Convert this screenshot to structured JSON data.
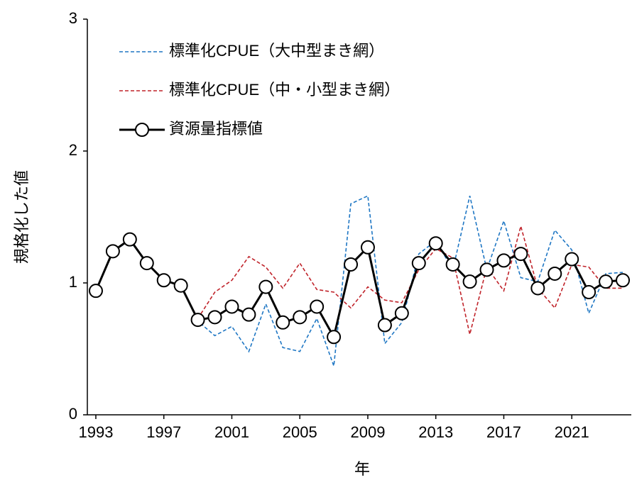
{
  "chart_data": {
    "type": "line",
    "x_label": "年",
    "y_label": "規格化した値",
    "x": [
      1993,
      1994,
      1995,
      1996,
      1997,
      1998,
      1999,
      2000,
      2001,
      2002,
      2003,
      2004,
      2005,
      2006,
      2007,
      2008,
      2009,
      2010,
      2011,
      2012,
      2013,
      2014,
      2015,
      2016,
      2017,
      2018,
      2019,
      2020,
      2021,
      2022,
      2023,
      2024
    ],
    "xlim": [
      1992.5,
      2024.5
    ],
    "xticks": [
      1993,
      1997,
      2001,
      2005,
      2009,
      2013,
      2017,
      2021
    ],
    "ylim": [
      0,
      3
    ],
    "yticks": [
      0,
      1,
      2,
      3
    ],
    "series": [
      {
        "name": "標準化CPUE（大中型まき網）",
        "color": "#1f77c4",
        "style": "dashed",
        "values": [
          0.94,
          1.24,
          1.32,
          1.15,
          1.02,
          0.98,
          0.71,
          0.6,
          0.67,
          0.48,
          0.84,
          0.51,
          0.48,
          0.73,
          0.37,
          1.6,
          1.66,
          0.54,
          0.7,
          1.22,
          1.32,
          1.1,
          1.66,
          1.1,
          1.47,
          1.04,
          1.01,
          1.4,
          1.25,
          0.77,
          1.07,
          1.08
        ]
      },
      {
        "name": "標準化CPUE（中・小型まき網）",
        "color": "#c0232a",
        "style": "dashed",
        "values": [
          null,
          null,
          null,
          null,
          null,
          null,
          0.73,
          0.93,
          1.02,
          1.2,
          1.12,
          0.96,
          1.15,
          0.95,
          0.93,
          0.81,
          0.97,
          0.87,
          0.85,
          1.1,
          1.26,
          1.19,
          0.61,
          1.12,
          0.94,
          1.43,
          0.96,
          0.81,
          1.14,
          1.12,
          0.96,
          0.96
        ]
      },
      {
        "name": "資源量指標値",
        "color": "#000000",
        "style": "solid-markers",
        "values": [
          0.94,
          1.24,
          1.33,
          1.15,
          1.02,
          0.98,
          0.72,
          0.74,
          0.82,
          0.76,
          0.97,
          0.7,
          0.74,
          0.82,
          0.59,
          1.14,
          1.27,
          0.68,
          0.77,
          1.15,
          1.3,
          1.14,
          1.01,
          1.1,
          1.17,
          1.22,
          0.96,
          1.07,
          1.18,
          0.93,
          1.01,
          1.02
        ]
      }
    ]
  }
}
